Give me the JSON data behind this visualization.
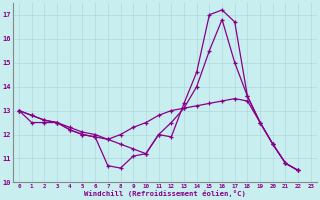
{
  "xlabel": "Windchill (Refroidissement éolien,°C)",
  "bg_color": "#c8eef0",
  "grid_color": "#b0d8dc",
  "line_color": "#880088",
  "spine_color": "#888888",
  "xlim": [
    -0.5,
    23.5
  ],
  "ylim": [
    10,
    17.5
  ],
  "yticks": [
    10,
    11,
    12,
    13,
    14,
    15,
    16,
    17
  ],
  "xticks": [
    0,
    1,
    2,
    3,
    4,
    5,
    6,
    7,
    8,
    9,
    10,
    11,
    12,
    13,
    14,
    15,
    16,
    17,
    18,
    19,
    20,
    21,
    22,
    23
  ],
  "series": [
    [
      13.0,
      12.8,
      12.6,
      12.5,
      12.2,
      12.0,
      11.9,
      10.7,
      10.6,
      11.1,
      11.2,
      12.0,
      11.9,
      13.3,
      14.6,
      17.0,
      17.2,
      16.7,
      13.6,
      12.5,
      11.6,
      10.8,
      10.5
    ],
    [
      13.0,
      12.8,
      12.6,
      12.5,
      12.2,
      12.0,
      11.9,
      11.8,
      11.6,
      11.4,
      11.2,
      12.0,
      12.5,
      13.1,
      14.0,
      15.5,
      16.8,
      15.0,
      13.6,
      12.5,
      11.6,
      10.8,
      10.5
    ],
    [
      13.0,
      12.5,
      12.5,
      12.5,
      12.3,
      12.1,
      12.0,
      11.8,
      12.0,
      12.3,
      12.5,
      12.8,
      13.0,
      13.1,
      13.2,
      13.3,
      13.4,
      13.5,
      13.4,
      12.5,
      11.6,
      10.8,
      10.5
    ]
  ]
}
